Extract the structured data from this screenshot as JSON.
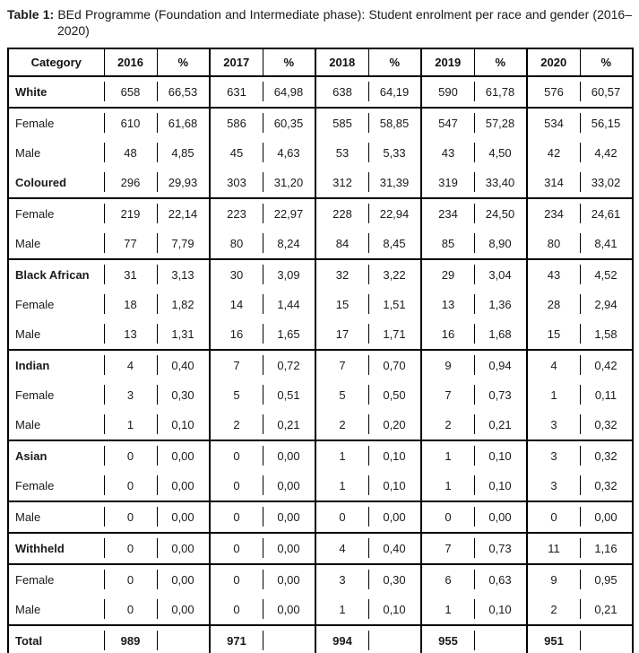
{
  "caption": {
    "label": "Table 1:",
    "text": "BEd Programme (Foundation and Intermediate phase): Student enrolment per race and gender (2016–2020)"
  },
  "table": {
    "columns": [
      "Category",
      "2016",
      "%",
      "2017",
      "%",
      "2018",
      "%",
      "2019",
      "%",
      "2020",
      "%"
    ],
    "rows": [
      {
        "category": "White",
        "bold": true,
        "bold_values": false,
        "line_below": true,
        "values": [
          "658",
          "66,53",
          "631",
          "64,98",
          "638",
          "64,19",
          "590",
          "61,78",
          "576",
          "60,57"
        ]
      },
      {
        "category": "Female",
        "bold": false,
        "bold_values": false,
        "line_below": false,
        "values": [
          "610",
          "61,68",
          "586",
          "60,35",
          "585",
          "58,85",
          "547",
          "57,28",
          "534",
          "56,15"
        ]
      },
      {
        "category": "Male",
        "bold": false,
        "bold_values": false,
        "line_below": false,
        "values": [
          "48",
          "4,85",
          "45",
          "4,63",
          "53",
          "5,33",
          "43",
          "4,50",
          "42",
          "4,42"
        ]
      },
      {
        "category": "Coloured",
        "bold": true,
        "bold_values": false,
        "line_below": true,
        "values": [
          "296",
          "29,93",
          "303",
          "31,20",
          "312",
          "31,39",
          "319",
          "33,40",
          "314",
          "33,02"
        ]
      },
      {
        "category": "Female",
        "bold": false,
        "bold_values": false,
        "line_below": false,
        "values": [
          "219",
          "22,14",
          "223",
          "22,97",
          "228",
          "22,94",
          "234",
          "24,50",
          "234",
          "24,61"
        ]
      },
      {
        "category": "Male",
        "bold": false,
        "bold_values": false,
        "line_below": true,
        "values": [
          "77",
          "7,79",
          "80",
          "8,24",
          "84",
          "8,45",
          "85",
          "8,90",
          "80",
          "8,41"
        ]
      },
      {
        "category": "Black African",
        "bold": true,
        "bold_values": false,
        "line_below": false,
        "values": [
          "31",
          "3,13",
          "30",
          "3,09",
          "32",
          "3,22",
          "29",
          "3,04",
          "43",
          "4,52"
        ]
      },
      {
        "category": "Female",
        "bold": false,
        "bold_values": false,
        "line_below": false,
        "values": [
          "18",
          "1,82",
          "14",
          "1,44",
          "15",
          "1,51",
          "13",
          "1,36",
          "28",
          "2,94"
        ]
      },
      {
        "category": "Male",
        "bold": false,
        "bold_values": false,
        "line_below": true,
        "values": [
          "13",
          "1,31",
          "16",
          "1,65",
          "17",
          "1,71",
          "16",
          "1,68",
          "15",
          "1,58"
        ]
      },
      {
        "category": "Indian",
        "bold": true,
        "bold_values": false,
        "line_below": false,
        "values": [
          "4",
          "0,40",
          "7",
          "0,72",
          "7",
          "0,70",
          "9",
          "0,94",
          "4",
          "0,42"
        ]
      },
      {
        "category": "Female",
        "bold": false,
        "bold_values": false,
        "line_below": false,
        "values": [
          "3",
          "0,30",
          "5",
          "0,51",
          "5",
          "0,50",
          "7",
          "0,73",
          "1",
          "0,11"
        ]
      },
      {
        "category": "Male",
        "bold": false,
        "bold_values": false,
        "line_below": true,
        "values": [
          "1",
          "0,10",
          "2",
          "0,21",
          "2",
          "0,20",
          "2",
          "0,21",
          "3",
          "0,32"
        ]
      },
      {
        "category": "Asian",
        "bold": true,
        "bold_values": false,
        "line_below": false,
        "values": [
          "0",
          "0,00",
          "0",
          "0,00",
          "1",
          "0,10",
          "1",
          "0,10",
          "3",
          "0,32"
        ]
      },
      {
        "category": "Female",
        "bold": false,
        "bold_values": false,
        "line_below": true,
        "values": [
          "0",
          "0,00",
          "0",
          "0,00",
          "1",
          "0,10",
          "1",
          "0,10",
          "3",
          "0,32"
        ]
      },
      {
        "category": "Male",
        "bold": false,
        "bold_values": false,
        "line_below": true,
        "values": [
          "0",
          "0,00",
          "0",
          "0,00",
          "0",
          "0,00",
          "0",
          "0,00",
          "0",
          "0,00"
        ]
      },
      {
        "category": "Withheld",
        "bold": true,
        "bold_values": false,
        "line_below": true,
        "values": [
          "0",
          "0,00",
          "0",
          "0,00",
          "4",
          "0,40",
          "7",
          "0,73",
          "11",
          "1,16"
        ]
      },
      {
        "category": "Female",
        "bold": false,
        "bold_values": false,
        "line_below": false,
        "values": [
          "0",
          "0,00",
          "0",
          "0,00",
          "3",
          "0,30",
          "6",
          "0,63",
          "9",
          "0,95"
        ]
      },
      {
        "category": "Male",
        "bold": false,
        "bold_values": false,
        "line_below": true,
        "values": [
          "0",
          "0,00",
          "0",
          "0,00",
          "1",
          "0,10",
          "1",
          "0,10",
          "2",
          "0,21"
        ]
      },
      {
        "category": "Total",
        "bold": true,
        "bold_values": true,
        "line_below": false,
        "values": [
          "989",
          "",
          "971",
          "",
          "994",
          "",
          "955",
          "",
          "951",
          ""
        ]
      }
    ]
  }
}
